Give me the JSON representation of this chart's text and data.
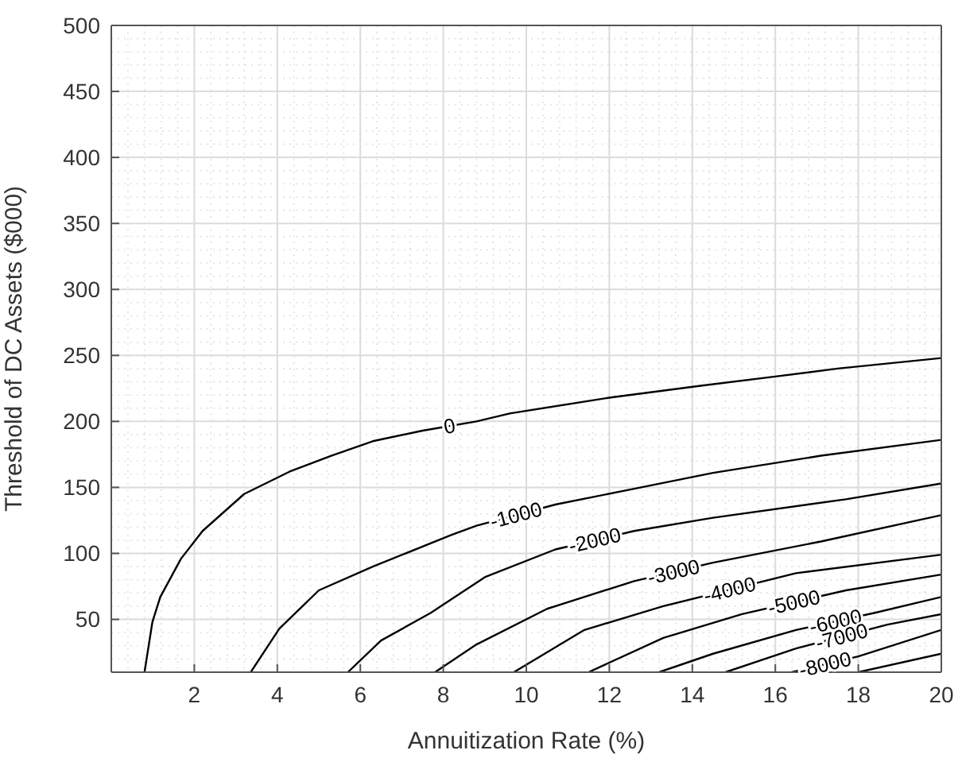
{
  "chart_data": {
    "type": "line",
    "xlabel": "Annuitization Rate (%)",
    "ylabel": "Threshold of DC Assets ($000)",
    "xlim": [
      0,
      20
    ],
    "ylim": [
      10,
      500
    ],
    "xticks": [
      2,
      4,
      6,
      8,
      10,
      12,
      14,
      16,
      18,
      20
    ],
    "yticks": [
      50,
      100,
      150,
      200,
      250,
      300,
      350,
      400,
      450,
      500
    ],
    "grid": true,
    "legend": false,
    "marker": "none",
    "line_style": "solid",
    "series": [
      {
        "name": "0",
        "color": "#000000",
        "x": [
          0.8,
          0.99,
          1.18,
          1.68,
          2.2,
          3.2,
          4.3,
          5.3,
          6.3,
          7.5,
          8.8,
          9.6,
          12.0,
          14.2,
          16.0,
          17.5,
          20
        ],
        "values": [
          10,
          48,
          67,
          96,
          117,
          145,
          162,
          174,
          185,
          193,
          200,
          206,
          218,
          227,
          234,
          240,
          248
        ]
      },
      {
        "name": "-1000",
        "color": "#000000",
        "x": [
          3.36,
          4.05,
          5.0,
          6.3,
          8.2,
          8.8,
          10.7,
          12.6,
          14.5,
          17.1,
          20
        ],
        "values": [
          10,
          43,
          72,
          90,
          114,
          121,
          137,
          149,
          161,
          174,
          186
        ]
      },
      {
        "name": "-2000",
        "color": "#000000",
        "x": [
          5.7,
          6.5,
          7.7,
          9.0,
          10.7,
          12.6,
          14.5,
          17.7,
          20
        ],
        "values": [
          10,
          34,
          55,
          82,
          103,
          117,
          127,
          141,
          153
        ]
      },
      {
        "name": "-3000",
        "color": "#000000",
        "x": [
          7.8,
          8.8,
          10.5,
          12.6,
          14.5,
          17.1,
          20
        ],
        "values": [
          10,
          31,
          58,
          79,
          93,
          109,
          129
        ]
      },
      {
        "name": "-4000",
        "color": "#000000",
        "x": [
          9.7,
          11.4,
          13.3,
          16.5,
          20
        ],
        "values": [
          10,
          42,
          60,
          85,
          99
        ]
      },
      {
        "name": "-5000",
        "color": "#000000",
        "x": [
          11.5,
          13.3,
          15.2,
          17.7,
          20
        ],
        "values": [
          10,
          36,
          54,
          72,
          84
        ]
      },
      {
        "name": "-6000",
        "color": "#000000",
        "x": [
          13.2,
          14.5,
          16.5,
          18.4,
          20
        ],
        "values": [
          10,
          24,
          42,
          55,
          67
        ]
      },
      {
        "name": "-7000",
        "color": "#000000",
        "x": [
          14.8,
          16.5,
          18.7,
          20
        ],
        "values": [
          10,
          28,
          46,
          54
        ]
      },
      {
        "name": "-8000",
        "color": "#000000",
        "x": [
          16.4,
          18.0,
          20
        ],
        "values": [
          10,
          22,
          42
        ]
      },
      {
        "color": "#000000",
        "x": [
          18.0,
          20
        ],
        "values": [
          10,
          24
        ]
      }
    ]
  }
}
